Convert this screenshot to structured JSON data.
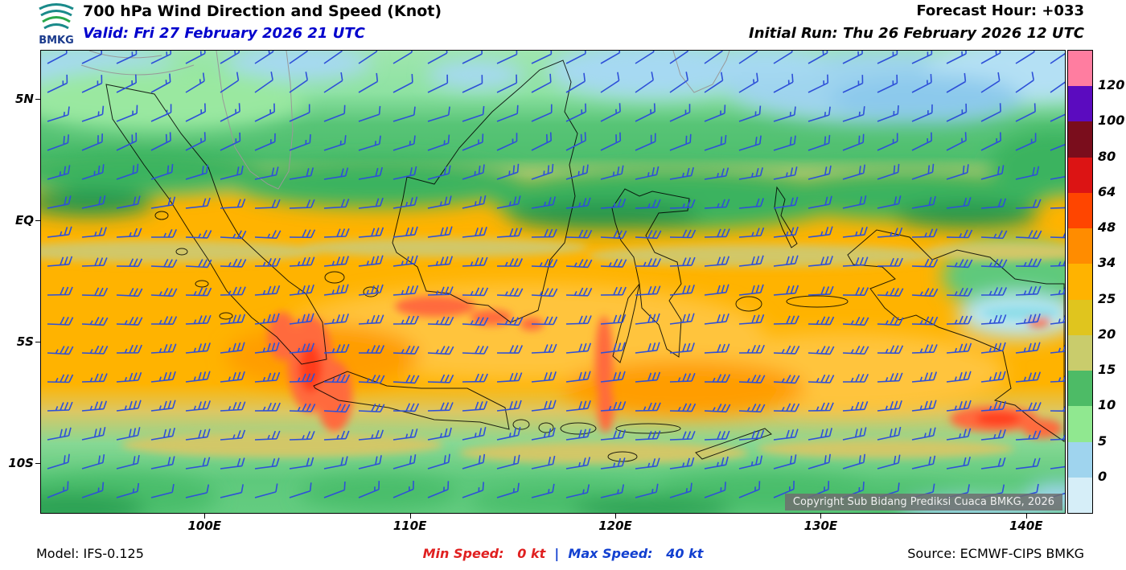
{
  "header": {
    "logo_text": "BMKG",
    "title": "700 hPa Wind Direction and Speed (Knot)",
    "valid": "Valid: Fri 27 February 2026 21 UTC",
    "forecast_hour": "Forecast Hour: +033",
    "initial_run": "Initial Run: Thu 26 February 2026 12 UTC"
  },
  "map": {
    "copyright": "Copyright Sub Bidang Prediksi Cuaca BMKG, 2026"
  },
  "footer": {
    "model": "Model: IFS-0.125",
    "min_speed_label": "Min Speed:",
    "min_speed_value": "0 kt",
    "separator": "|",
    "max_speed_label": "Max Speed:",
    "max_speed_value": "40 kt",
    "source": "Source: ECMWF-CIPS BMKG"
  },
  "chart_data": {
    "type": "heatmap",
    "title": "700 hPa Wind Direction and Speed (Knot)",
    "units": "Knot",
    "field": "wind speed shading with wind-direction barbs",
    "min_speed_kt": 0,
    "max_speed_kt": 40,
    "barb_color": "#2e50d8",
    "colorbar": {
      "labels": [
        "120",
        "100",
        "80",
        "64",
        "48",
        "34",
        "25",
        "20",
        "15",
        "10",
        "5",
        "0"
      ],
      "colors_top_to_bottom": [
        "#ff7da0",
        "#5b0bbf",
        "#7a0d1c",
        "#dc1414",
        "#ff4500",
        "#ff8c00",
        "#ffb300",
        "#e0c51e",
        "#c9cc6c",
        "#4dbb66",
        "#90e890",
        "#9fd4ee",
        "#d6eef8"
      ]
    },
    "x_axis": {
      "ticks": [
        "100E",
        "110E",
        "120E",
        "130E",
        "140E"
      ],
      "lon_values": [
        100,
        110,
        120,
        130,
        140
      ],
      "range": [
        92.0,
        141.85
      ]
    },
    "y_axis": {
      "ticks": [
        "5N",
        "EQ",
        "5S",
        "10S"
      ],
      "lat_values": [
        5,
        0,
        -5,
        -10
      ],
      "range": [
        7.0,
        -12.0
      ]
    }
  }
}
